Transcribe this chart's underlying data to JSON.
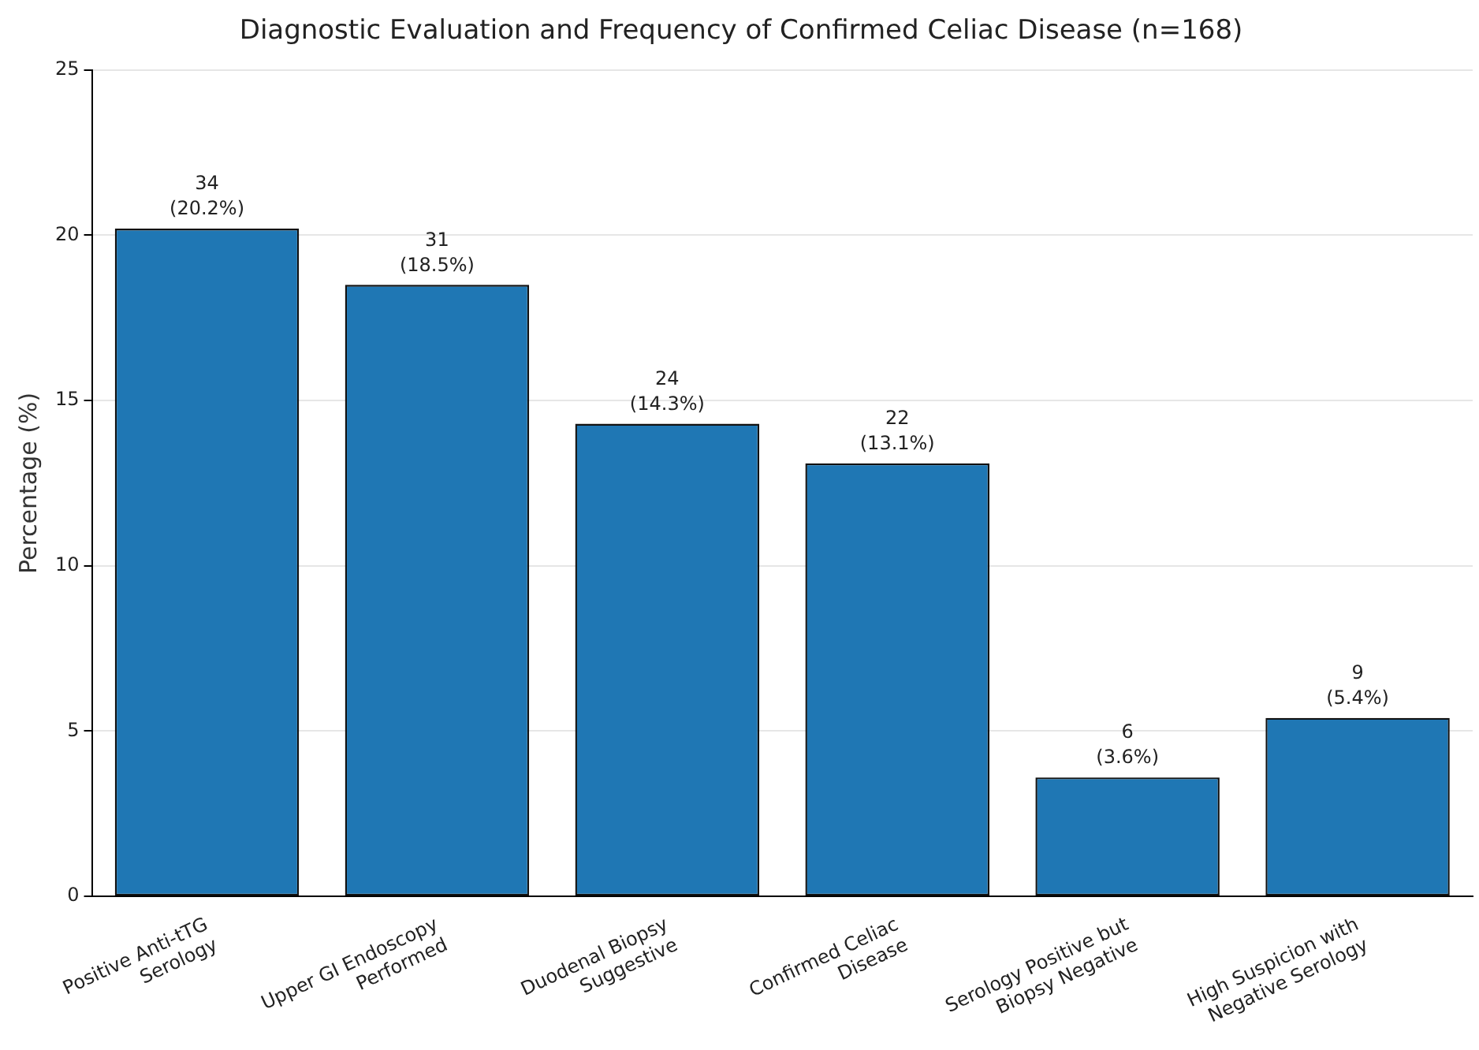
{
  "chart_data": {
    "type": "bar",
    "title": "Diagnostic Evaluation and Frequency of Confirmed Celiac Disease (n=168)",
    "ylabel": "Percentage (%)",
    "categories": [
      "Positive Anti-tTG\nSerology",
      "Upper GI Endoscopy\nPerformed",
      "Duodenal Biopsy\nSuggestive",
      "Confirmed Celiac\nDisease",
      "Serology Positive but\nBiopsy Negative",
      "High Suspicion with\nNegative Serology"
    ],
    "values": [
      20.2,
      18.5,
      14.3,
      13.1,
      3.6,
      5.4
    ],
    "value_labels": [
      "34\n(20.2%)",
      "31\n(18.5%)",
      "24\n(14.3%)",
      "22\n(13.1%)",
      "6\n(3.6%)",
      "9\n(5.4%)"
    ],
    "color": "#1f77b4",
    "ylim": [
      0,
      25
    ],
    "yticks": [
      0,
      5,
      10,
      15,
      20,
      25
    ],
    "grid": "y"
  }
}
